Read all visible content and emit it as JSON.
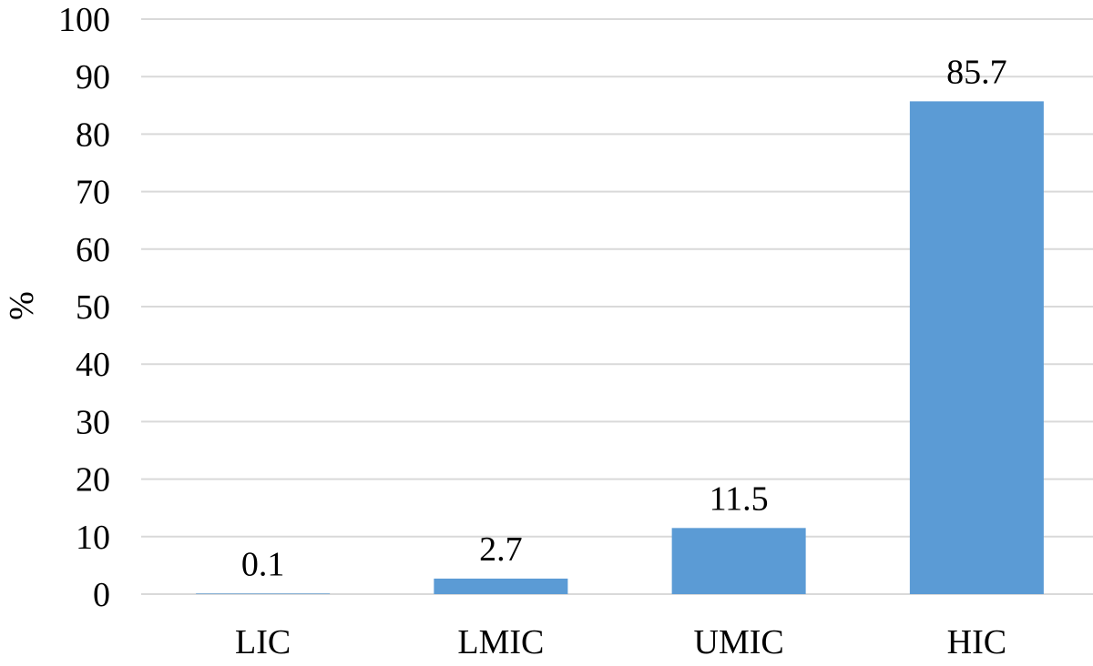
{
  "chart_data": {
    "type": "bar",
    "categories": [
      "LIC",
      "LMIC",
      "UMIC",
      "HIC"
    ],
    "values": [
      0.1,
      2.7,
      11.5,
      85.7
    ],
    "data_labels": [
      "0.1",
      "2.7",
      "11.5",
      "85.7"
    ],
    "ylabel": "%",
    "xlabel": "",
    "ylim": [
      0,
      100
    ],
    "yticks": [
      0,
      10,
      20,
      30,
      40,
      50,
      60,
      70,
      80,
      90,
      100
    ],
    "ytick_labels": [
      "0",
      "10",
      "20",
      "30",
      "40",
      "50",
      "60",
      "70",
      "80",
      "90",
      "100"
    ],
    "grid": true,
    "legend": "none",
    "colors": {
      "bar": "#5b9bd5",
      "grid": "#d9d9d9",
      "text": "#000000"
    }
  }
}
